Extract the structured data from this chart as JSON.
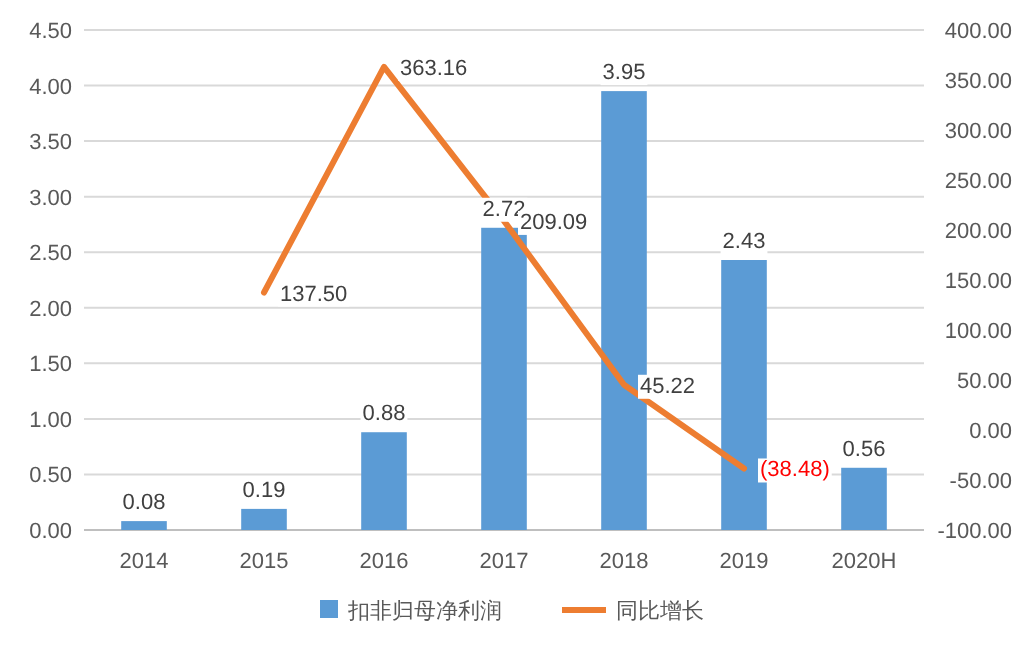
{
  "chart_data": {
    "type": "bar",
    "categories": [
      "2014",
      "2015",
      "2016",
      "2017",
      "2018",
      "2019",
      "2020H"
    ],
    "series": [
      {
        "name": "扣非归母净利润",
        "color": "#5b9bd5",
        "values": [
          0.08,
          0.19,
          0.88,
          2.72,
          3.95,
          2.43,
          0.56
        ],
        "value_labels": [
          "0.08",
          "0.19",
          "0.88",
          "2.72",
          "3.95",
          "2.43",
          "0.56"
        ]
      },
      {
        "name": "同比增长",
        "type": "line",
        "axis": "y2",
        "color": "#ed7d31",
        "values": [
          null,
          137.5,
          363.16,
          209.09,
          45.22,
          -38.48,
          null
        ],
        "value_labels": [
          null,
          "137.50",
          "363.16",
          "209.09",
          "45.22",
          "(38.48)",
          null
        ]
      }
    ],
    "ylim": [
      0,
      4.5
    ],
    "yticks": [
      {
        "value": 0,
        "label": "0.00"
      },
      {
        "value": 0.5,
        "label": "0.50"
      },
      {
        "value": 1,
        "label": "1.00"
      },
      {
        "value": 1.5,
        "label": "1.50"
      },
      {
        "value": 2,
        "label": "2.00"
      },
      {
        "value": 2.5,
        "label": "2.50"
      },
      {
        "value": 3,
        "label": "3.00"
      },
      {
        "value": 3.5,
        "label": "3.50"
      },
      {
        "value": 4,
        "label": "4.00"
      },
      {
        "value": 4.5,
        "label": "4.50"
      }
    ],
    "y2lim": [
      -100,
      400
    ],
    "y2ticks": [
      {
        "value": -100,
        "label": "-100.00"
      },
      {
        "value": -50,
        "label": "-50.00"
      },
      {
        "value": 0,
        "label": "0.00"
      },
      {
        "value": 50,
        "label": "50.00"
      },
      {
        "value": 100,
        "label": "100.00"
      },
      {
        "value": 150,
        "label": "150.00"
      },
      {
        "value": 200,
        "label": "200.00"
      },
      {
        "value": 250,
        "label": "250.00"
      },
      {
        "value": 300,
        "label": "300.00"
      },
      {
        "value": 350,
        "label": "350.00"
      },
      {
        "value": 400,
        "label": "400.00"
      }
    ],
    "grid": "y",
    "legend": "bottom",
    "marker": "none"
  }
}
